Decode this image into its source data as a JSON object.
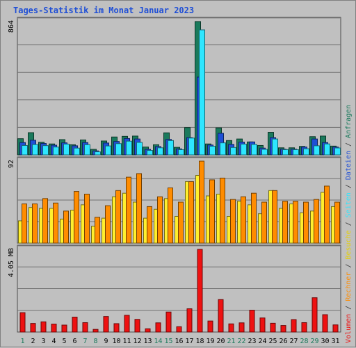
{
  "chart_data": {
    "type": "bar",
    "title": "Tages-Statistik im Monat Januar 2023",
    "days": [
      "1",
      "2",
      "3",
      "4",
      "5",
      "6",
      "7",
      "8",
      "9",
      "10",
      "11",
      "12",
      "13",
      "14",
      "15",
      "16",
      "17",
      "18",
      "19",
      "20",
      "21",
      "22",
      "23",
      "24",
      "25",
      "26",
      "27",
      "28",
      "29",
      "30",
      "31"
    ],
    "weekend_days": [
      "1",
      "7",
      "8",
      "14",
      "15",
      "21",
      "22",
      "28",
      "29"
    ],
    "panels": [
      {
        "key": "top",
        "max_label": "864",
        "max": 864,
        "series": [
          {
            "name": "Anfragen",
            "color": "#1a7a5c",
            "values": [
              105,
              144,
              82,
              71,
              99,
              66,
              97,
              36,
              90,
              116,
              120,
              122,
              51,
              66,
              143,
              49,
              177,
              864,
              71,
              175,
              93,
              103,
              84,
              61,
              146,
              46,
              46,
              55,
              118,
              122,
              57
            ]
          },
          {
            "name": "Dateien",
            "color": "#1f4fd6",
            "values": [
              80,
              95,
              74,
              63,
              78,
              59,
              80,
              26,
              77,
              87,
              106,
              103,
              36,
              54,
              100,
              39,
              112,
              504,
              64,
              140,
              68,
              83,
              84,
              44,
              112,
              37,
              37,
              51,
              103,
              80,
              51
            ]
          },
          {
            "name": "Seiten",
            "color": "#2ee6ff",
            "values": [
              61,
              67,
              60,
              51,
              70,
              44,
              66,
              20,
              58,
              73,
              89,
              81,
              29,
              46,
              93,
              34,
              109,
              810,
              56,
              78,
              48,
              70,
              68,
              36,
              103,
              34,
              34,
              40,
              59,
              71,
              45
            ]
          }
        ]
      },
      {
        "key": "middle",
        "max_label": "92",
        "max": 92,
        "series": [
          {
            "name": "Besuche",
            "color": "#ffef2e",
            "values": [
              25,
              40,
              39,
              39,
              27,
              37,
              43,
              19,
              28,
              52,
              56,
              46,
              28,
              38,
              50,
              30,
              69,
              76,
              53,
              55,
              30,
              47,
              43,
              33,
              59,
              39,
              44,
              34,
              36,
              57,
              41
            ]
          },
          {
            "name": "Rechner",
            "color": "#ff8c00",
            "values": [
              44,
              44,
              50,
              45,
              36,
              58,
              55,
              29,
              42,
              59,
              74,
              78,
              41,
              52,
              62,
              46,
              69,
              92,
              71,
              73,
              49,
              52,
              56,
              46,
              59,
              47,
              47,
              46,
              49,
              64,
              46
            ]
          }
        ]
      },
      {
        "key": "bottom",
        "max_label": "4.05 MB",
        "max": 4.05,
        "series": [
          {
            "name": "Volumen",
            "color": "#ee1111",
            "values": [
              0.95,
              0.42,
              0.5,
              0.39,
              0.34,
              0.73,
              0.46,
              0.13,
              0.76,
              0.41,
              0.82,
              0.62,
              0.16,
              0.45,
              0.98,
              0.26,
              1.14,
              4.05,
              0.54,
              1.59,
              0.4,
              0.45,
              1.07,
              0.69,
              0.43,
              0.32,
              0.61,
              0.46,
              1.68,
              0.85,
              0.35
            ]
          }
        ]
      }
    ],
    "legend_right": [
      {
        "label": "Volumen",
        "color": "#ee1111"
      },
      {
        "label": " / ",
        "color": "#333333"
      },
      {
        "label": "Rechner",
        "color": "#ff8c00"
      },
      {
        "label": " / ",
        "color": "#333333"
      },
      {
        "label": "Besuche",
        "color": "#e6d000"
      },
      {
        "label": " / ",
        "color": "#333333"
      },
      {
        "label": "Seiten",
        "color": "#2ee6ff"
      },
      {
        "label": " / ",
        "color": "#333333"
      },
      {
        "label": "Dateien",
        "color": "#1f4fd6"
      },
      {
        "label": " / ",
        "color": "#333333"
      },
      {
        "label": "Anfragen",
        "color": "#1a7a5c"
      }
    ]
  }
}
